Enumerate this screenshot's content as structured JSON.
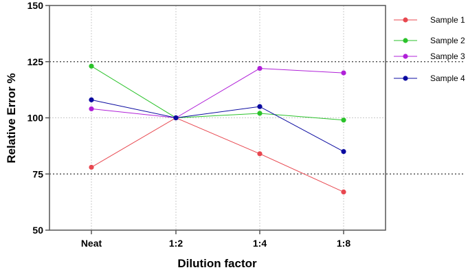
{
  "chart_data": {
    "type": "line",
    "xlabel": "Dilution factor",
    "ylabel": "Relative Error %",
    "categories": [
      "Neat",
      "1:2",
      "1:4",
      "1:8"
    ],
    "ylim": [
      50,
      150
    ],
    "yticks": [
      50,
      75,
      100,
      125,
      150
    ],
    "grid": true,
    "reference_lines": [
      75,
      125
    ],
    "legend_position": "right",
    "series": [
      {
        "name": "Sample 1",
        "color": "#e8474f",
        "values": [
          78,
          100,
          84,
          67
        ]
      },
      {
        "name": "Sample 2",
        "color": "#2ac22a",
        "values": [
          123,
          100,
          102,
          99
        ]
      },
      {
        "name": "Sample 3",
        "color": "#b020d8",
        "values": [
          104,
          100,
          122,
          120
        ]
      },
      {
        "name": "Sample 4",
        "color": "#0a0aa0",
        "values": [
          108,
          100,
          105,
          85
        ]
      }
    ]
  }
}
